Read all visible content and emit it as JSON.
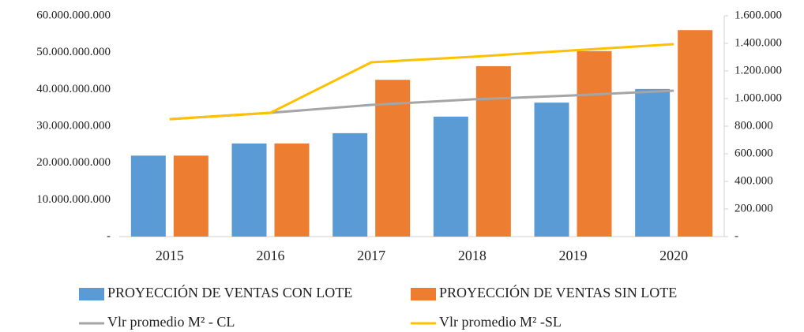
{
  "chart_data": {
    "type": "bar-line",
    "categories": [
      "2015",
      "2016",
      "2017",
      "2018",
      "2019",
      "2020"
    ],
    "series": [
      {
        "name": "PROYECCIÓN DE VENTAS CON LOTE",
        "type": "bar",
        "color": "#5b9bd5",
        "values": [
          22000000000,
          25300000000,
          28100000000,
          32600000000,
          36400000000,
          40100000000
        ]
      },
      {
        "name": "PROYECCIÓN DE VENTAS SIN LOTE",
        "type": "bar",
        "color": "#ed7d31",
        "values": [
          22000000000,
          25300000000,
          42600000000,
          46300000000,
          50400000000,
          56100000000
        ]
      },
      {
        "name": "Vlr promedio M² - CL",
        "type": "line",
        "axis": "y2",
        "color": "#a5a5a5",
        "values": [
          851000,
          897000,
          954000,
          994000,
          1023000,
          1057000
        ]
      },
      {
        "name": "Vlr promedio M² -SL",
        "type": "line",
        "axis": "y2",
        "color": "#ffc000",
        "values": [
          851000,
          897000,
          1263000,
          1303000,
          1349000,
          1394000
        ]
      }
    ],
    "ylim": [
      0,
      60000000000
    ],
    "yticks": [
      {
        "value": 0,
        "label": "-"
      },
      {
        "value": 10000000000,
        "label": "10.000.000.000"
      },
      {
        "value": 20000000000,
        "label": "20.000.000.000"
      },
      {
        "value": 30000000000,
        "label": "30.000.000.000"
      },
      {
        "value": 40000000000,
        "label": "40.000.000.000"
      },
      {
        "value": 50000000000,
        "label": "50.000.000.000"
      },
      {
        "value": 60000000000,
        "label": "60.000.000.000"
      }
    ],
    "y2lim": [
      0,
      1600000
    ],
    "y2ticks": [
      {
        "value": 0,
        "label": "-"
      },
      {
        "value": 200000,
        "label": "200.000"
      },
      {
        "value": 400000,
        "label": "400.000"
      },
      {
        "value": 600000,
        "label": "600.000"
      },
      {
        "value": 800000,
        "label": "800.000"
      },
      {
        "value": 1000000,
        "label": "1.000.000"
      },
      {
        "value": 1200000,
        "label": "1.200.000"
      },
      {
        "value": 1400000,
        "label": "1.400.000"
      },
      {
        "value": 1600000,
        "label": "1.600.000"
      }
    ],
    "grid": false,
    "legend": "bottom"
  }
}
